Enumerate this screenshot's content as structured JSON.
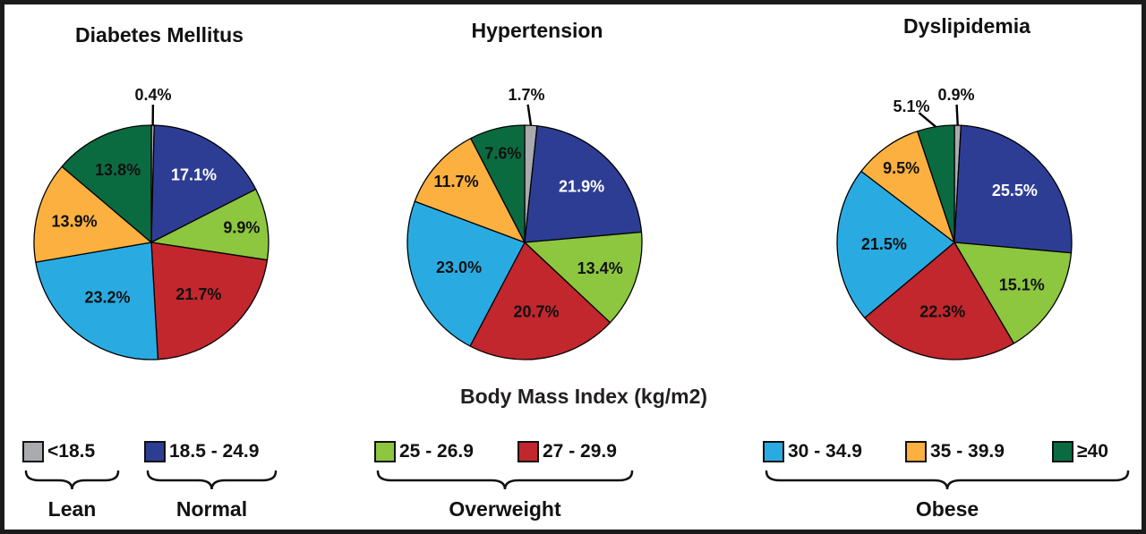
{
  "figure": {
    "background_color": "#ffffff",
    "border_color": "#1b1b1b"
  },
  "chart_data": {
    "type": "pie",
    "unit": "percent",
    "start_angle": "12-oclock",
    "direction": "clockwise",
    "outline_color": "#000000",
    "categories": [
      {
        "label": "<18.5",
        "color": "#A9ABAE",
        "group": "Lean",
        "label_text_color": "#111111"
      },
      {
        "label": "18.5 - 24.9",
        "color": "#2E3D94",
        "group": "Normal",
        "label_text_color": "#ffffff"
      },
      {
        "label": "25 - 26.9",
        "color": "#8DC63F",
        "group": "Overweight",
        "label_text_color": "#111111"
      },
      {
        "label": "27 - 29.9",
        "color": "#C1272D",
        "group": "Overweight",
        "label_text_color": "#111111"
      },
      {
        "label": "30 - 34.9",
        "color": "#29ABE2",
        "group": "Obese",
        "label_text_color": "#111111"
      },
      {
        "label": "35 - 39.9",
        "color": "#FBB040",
        "group": "Obese",
        "label_text_color": "#111111"
      },
      {
        "label": "≥40",
        "color": "#0B6B40",
        "group": "Obese",
        "label_text_color": "#111111"
      }
    ],
    "pies": [
      {
        "title": "Diabetes Mellitus",
        "values": [
          0.4,
          17.1,
          9.9,
          21.7,
          23.2,
          13.9,
          13.8
        ],
        "labels": [
          "0.4%",
          "17.1%",
          "9.9%",
          "21.7%",
          "23.2%",
          "13.9%",
          "13.8%"
        ]
      },
      {
        "title": "Hypertension",
        "values": [
          1.7,
          21.9,
          13.4,
          20.7,
          23.0,
          11.7,
          7.6
        ],
        "labels": [
          "1.7%",
          "21.9%",
          "13.4%",
          "20.7%",
          "23.0%",
          "11.7%",
          "7.6%"
        ]
      },
      {
        "title": "Dyslipidemia",
        "values": [
          0.9,
          25.5,
          15.1,
          22.3,
          21.5,
          9.5,
          5.1
        ],
        "labels": [
          "0.9%",
          "25.5%",
          "15.1%",
          "22.3%",
          "21.5%",
          "9.5%",
          "5.1%"
        ]
      }
    ],
    "legend": {
      "title": "Body Mass Index (kg/m2)",
      "groups": [
        {
          "label": "Lean",
          "span": [
            0,
            0
          ]
        },
        {
          "label": "Normal",
          "span": [
            1,
            1
          ]
        },
        {
          "label": "Overweight",
          "span": [
            2,
            3
          ]
        },
        {
          "label": "Obese",
          "span": [
            4,
            6
          ]
        }
      ]
    }
  }
}
